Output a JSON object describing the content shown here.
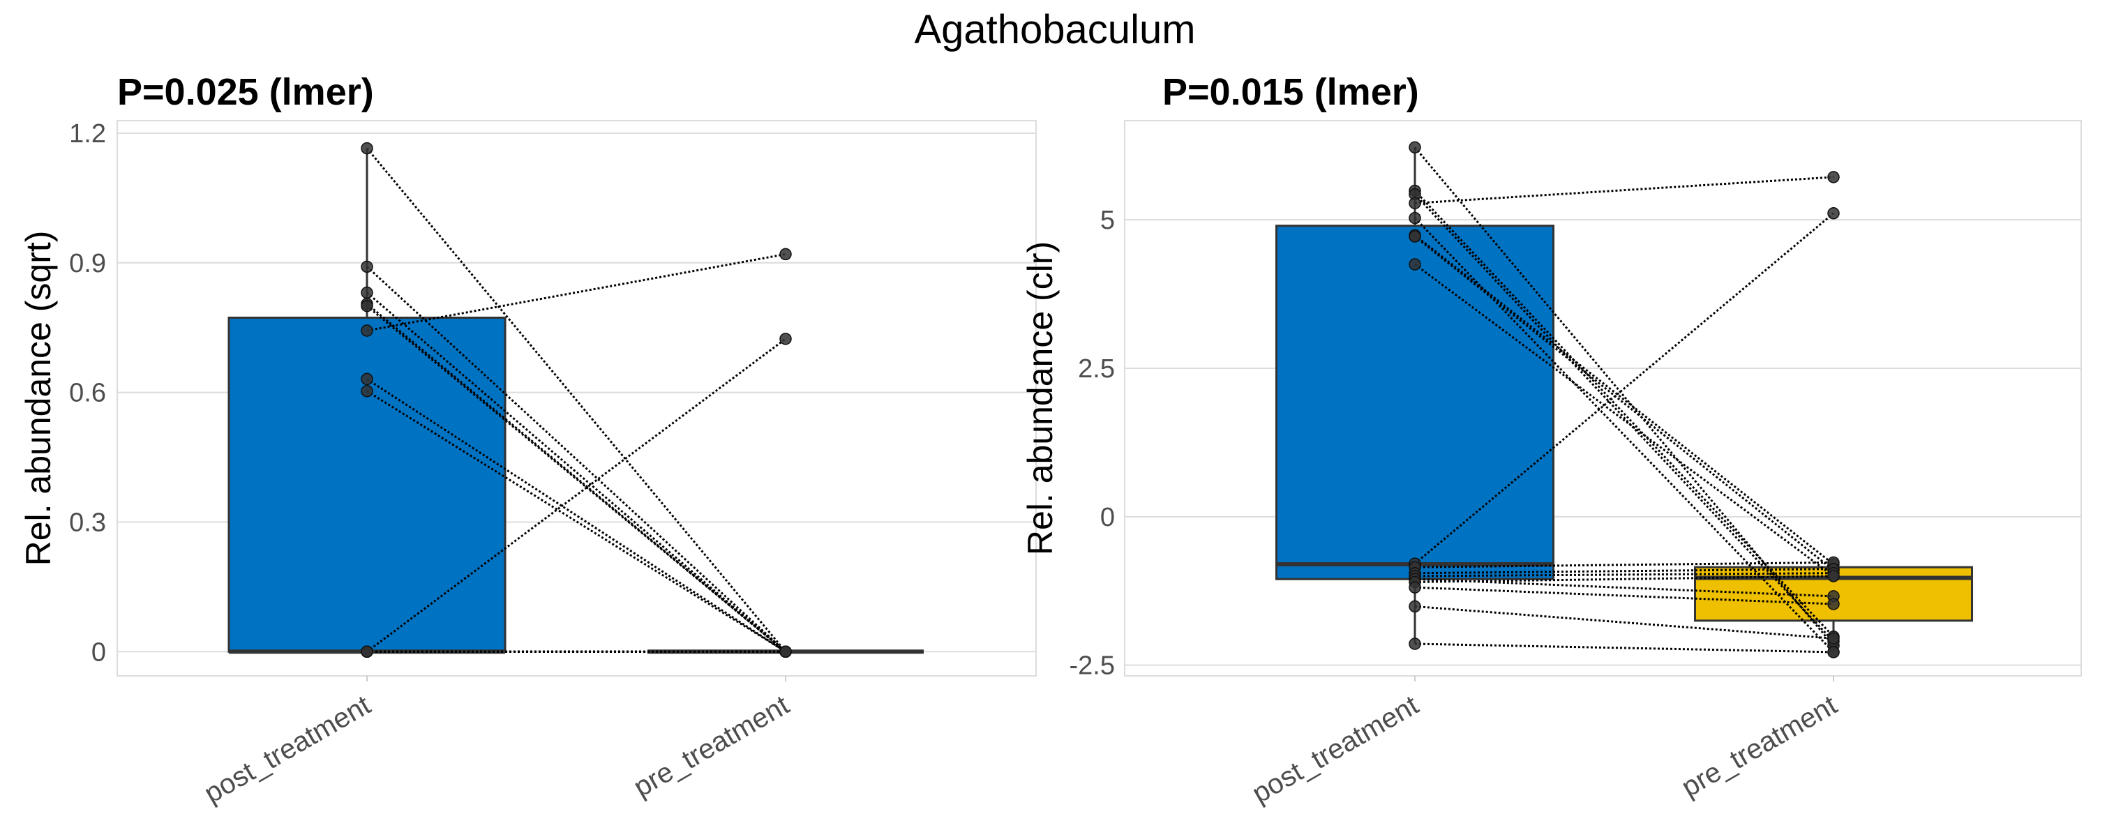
{
  "figure_title": "Agathobaculum",
  "colors": {
    "post_treatment": "#0072C2",
    "pre_treatment": "#EFC000",
    "outline": "#333333",
    "point": "#333333"
  },
  "chart_data": [
    {
      "type": "boxplot-paired",
      "title": "P=0.025 (lmer)",
      "xlabel": "",
      "ylabel": "Rel. abundance (sqrt)",
      "categories": [
        "post_treatment",
        "pre_treatment"
      ],
      "ylim": [
        -0.056,
        1.229
      ],
      "yticks": [
        0,
        0.3,
        0.6,
        0.9,
        1.2
      ],
      "ytick_labels": [
        "0",
        "0.3",
        "0.6",
        "0.9",
        "1.2"
      ],
      "grid": true,
      "boxes": [
        {
          "group": "post_treatment",
          "min": 0,
          "q1": 0,
          "median": 0,
          "q3": 0.773,
          "max": 1.165
        },
        {
          "group": "pre_treatment",
          "min": 0,
          "q1": 0,
          "median": 0,
          "q3": 0,
          "max": 0
        }
      ],
      "pairs": [
        [
          1.165,
          0
        ],
        [
          0.891,
          0
        ],
        [
          0.831,
          0
        ],
        [
          0.805,
          0
        ],
        [
          0.8,
          0
        ],
        [
          0.743,
          0.92
        ],
        [
          0.631,
          0
        ],
        [
          0.603,
          0
        ],
        [
          0,
          0.724
        ],
        [
          0,
          0
        ],
        [
          0,
          0
        ],
        [
          0,
          0
        ],
        [
          0,
          0
        ],
        [
          0,
          0
        ],
        [
          0,
          0
        ]
      ]
    },
    {
      "type": "boxplot-paired",
      "title": "P=0.015 (lmer)",
      "xlabel": "",
      "ylabel": "Rel. abundance (clr)",
      "categories": [
        "post_treatment",
        "pre_treatment"
      ],
      "ylim": [
        -2.68,
        6.67
      ],
      "yticks": [
        -2.5,
        0,
        2.5,
        5
      ],
      "ytick_labels": [
        "-2.5",
        "0",
        "2.5",
        "5"
      ],
      "grid": true,
      "boxes": [
        {
          "group": "post_treatment",
          "min": -2.14,
          "q1": -1.05,
          "median": -0.8,
          "q3": 4.9,
          "max": 6.22
        },
        {
          "group": "pre_treatment",
          "min": -2.28,
          "q1": -1.75,
          "median": -1.03,
          "q3": -0.85,
          "max": -0.76
        }
      ],
      "pairs": [
        [
          6.22,
          -2.17
        ],
        [
          5.49,
          -2.02
        ],
        [
          5.43,
          -2.1
        ],
        [
          5.28,
          5.72
        ],
        [
          5.03,
          -2.28
        ],
        [
          4.74,
          -0.8
        ],
        [
          4.72,
          -0.9
        ],
        [
          4.25,
          -1.0
        ],
        [
          -0.79,
          5.11
        ],
        [
          -0.85,
          -0.77
        ],
        [
          -0.95,
          -0.88
        ],
        [
          -1.0,
          -0.95
        ],
        [
          -1.05,
          -1.34
        ],
        [
          -1.1,
          -1.0
        ],
        [
          -1.19,
          -1.47
        ],
        [
          -1.51,
          -2.05
        ],
        [
          -2.14,
          -2.28
        ]
      ]
    }
  ]
}
